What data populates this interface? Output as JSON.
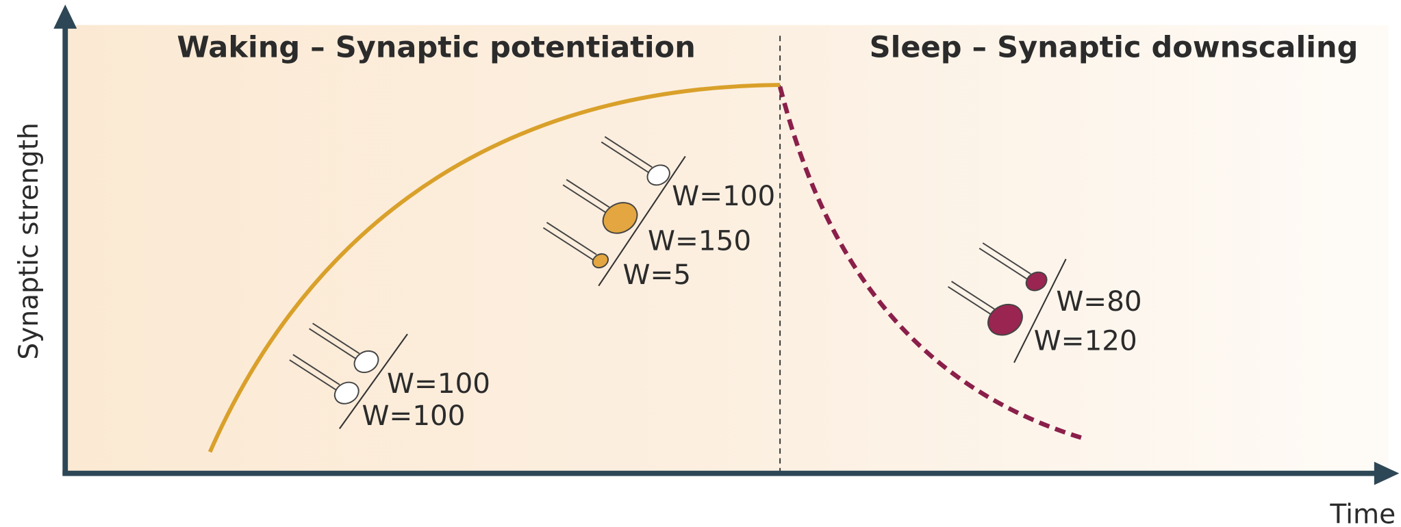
{
  "header": {
    "waking": "Waking – Synaptic potentiation",
    "sleep": "Sleep – Synaptic downscaling"
  },
  "axes": {
    "y": "Synaptic strength",
    "x": "Time"
  },
  "synapse_groups": [
    {
      "labels": [
        "W=100",
        "W=100"
      ]
    },
    {
      "labels": [
        "W=100",
        "W=150",
        "W=5"
      ]
    },
    {
      "labels": [
        "W=80",
        "W=120"
      ]
    }
  ]
}
